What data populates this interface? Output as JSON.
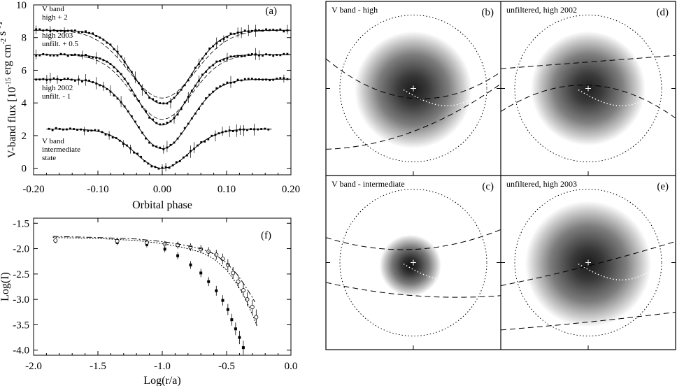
{
  "chart_data": [
    {
      "type": "line",
      "panel": "(a)",
      "xlabel": "Orbital phase",
      "ylabel": "V-band flux [10",
      "ylabel_sup1": "-15",
      "ylabel_mid": " erg cm",
      "ylabel_sup2": "-2",
      "ylabel_mid2": " s",
      "ylabel_sup3": "-1",
      "ylabel_end": "]",
      "xlim": [
        -0.2,
        0.2
      ],
      "ylim": [
        -0.4,
        10
      ],
      "xticks": [
        -0.2,
        -0.1,
        0.0,
        0.1,
        0.2
      ],
      "xtick_labels": [
        "-0.20",
        "-0.10",
        "0.00",
        "0.10",
        "0.20"
      ],
      "yticks": [
        0,
        2,
        4,
        6,
        8,
        10
      ],
      "ytick_labels": [
        "0",
        "2",
        "4",
        "6",
        "8",
        "10"
      ],
      "series": [
        {
          "key": "vhigh",
          "offset": 8.45,
          "depth": 4.5,
          "width": 0.045,
          "xmin": -0.2,
          "xmax": 0.2
        },
        {
          "key": "unf2003",
          "offset": 6.95,
          "depth": 4.3,
          "width": 0.04,
          "xmin": -0.2,
          "xmax": 0.2
        },
        {
          "key": "unf2002",
          "offset": 5.45,
          "depth": 4.25,
          "width": 0.043,
          "xmin": -0.2,
          "xmax": 0.2
        },
        {
          "key": "vint",
          "offset": 2.4,
          "depth": 2.4,
          "width": 0.042,
          "xmin": -0.18,
          "xmax": 0.17
        }
      ],
      "annotations": [
        {
          "lines": [
            "V band",
            "high + 2"
          ]
        },
        {
          "lines": [
            "high 2003",
            "unfilt. + 0.5"
          ]
        },
        {
          "lines": [
            "high 2002",
            "unfilt. - 1"
          ]
        },
        {
          "lines": [
            "V band",
            "intermediate",
            "state"
          ]
        }
      ]
    },
    {
      "type": "scatter",
      "panel": "(f)",
      "xlabel": "Log(r/a)",
      "ylabel": "Log(I)",
      "xlim": [
        -2.0,
        0.0
      ],
      "ylim": [
        -4.1,
        -1.4
      ],
      "xticks": [
        -2.0,
        -1.5,
        -1.0,
        -0.5,
        0.0
      ],
      "xtick_labels": [
        "-2.0",
        "-1.5",
        "-1.0",
        "-0.5",
        "0.0"
      ],
      "yticks": [
        -1.5,
        -2.0,
        -2.5,
        -3.0,
        -3.5,
        -4.0
      ],
      "ytick_labels": [
        "-1.5",
        "-2.0",
        "-2.5",
        "-3.0",
        "-3.5",
        "-4.0"
      ],
      "series": [
        {
          "key": "filled",
          "marker": "filled-square",
          "x": [
            -1.83,
            -1.35,
            -1.12,
            -0.98,
            -0.88,
            -0.78,
            -0.7,
            -0.64,
            -0.58,
            -0.53,
            -0.49,
            -0.46,
            -0.43,
            -0.4,
            -0.37
          ],
          "y": [
            -1.85,
            -1.88,
            -1.92,
            -2.01,
            -2.14,
            -2.32,
            -2.48,
            -2.65,
            -2.83,
            -3.02,
            -3.2,
            -3.4,
            -3.58,
            -3.75,
            -3.95
          ]
        },
        {
          "key": "open",
          "marker": "open-circle",
          "x": [
            -1.83,
            -1.35,
            -1.12,
            -0.98,
            -0.88,
            -0.78,
            -0.7,
            -0.64,
            -0.58,
            -0.53,
            -0.49,
            -0.45,
            -0.41,
            -0.37,
            -0.34,
            -0.3,
            -0.27
          ],
          "y": [
            -1.84,
            -1.85,
            -1.88,
            -1.91,
            -1.93,
            -1.97,
            -2.01,
            -2.06,
            -2.12,
            -2.2,
            -2.32,
            -2.48,
            -2.65,
            -2.82,
            -3.0,
            -3.15,
            -3.35
          ]
        },
        {
          "key": "dashdot",
          "style": "dashdot",
          "x": [
            -1.85,
            -1.5,
            -1.2,
            -1.0,
            -0.85,
            -0.7,
            -0.6,
            -0.5,
            -0.42,
            -0.36,
            -0.31,
            -0.28
          ],
          "y": [
            -1.76,
            -1.78,
            -1.81,
            -1.86,
            -1.92,
            -2.0,
            -2.1,
            -2.28,
            -2.5,
            -2.72,
            -2.92,
            -3.05
          ]
        },
        {
          "key": "dotted",
          "style": "dotted",
          "x": [
            -1.85,
            -1.5,
            -1.2,
            -1.0,
            -0.85,
            -0.7,
            -0.6,
            -0.5,
            -0.42,
            -0.35,
            -0.3,
            -0.26
          ],
          "y": [
            -1.78,
            -1.8,
            -1.84,
            -1.9,
            -1.97,
            -2.07,
            -2.2,
            -2.42,
            -2.7,
            -3.0,
            -3.3,
            -3.55
          ]
        }
      ]
    }
  ],
  "maps": [
    {
      "panel": "(b)",
      "title": "V band - high",
      "blob_r": 0.8,
      "blob_shift": [
        0,
        0.02
      ],
      "dense": 0.92,
      "d1": [
        -1.0,
        0.45,
        -0.15,
        1.4,
        0.25
      ],
      "d2": [
        -1.0,
        -0.92,
        -0.65,
        1.0,
        0.07
      ]
    },
    {
      "panel": "(d)",
      "title": "unfiltered, high 2002",
      "blob_r": 0.78,
      "blob_shift": [
        0,
        0
      ],
      "dense": 0.9,
      "d1": [
        -1.0,
        0.3,
        0.4,
        1.0,
        0.5
      ],
      "d2": [
        -1.0,
        -0.35,
        0.05,
        1.0,
        -0.45
      ]
    },
    {
      "panel": "(c)",
      "title": "V band - intermediate",
      "blob_r": 0.42,
      "blob_shift": [
        -0.04,
        0.04
      ],
      "dense": 0.95,
      "d1": [
        -1.0,
        0.38,
        0.2,
        1.0,
        0.5
      ],
      "d2": [
        -1.0,
        -0.3,
        -0.5,
        1.0,
        -0.5
      ]
    },
    {
      "panel": "(e)",
      "title": "unfiltered, high 2003",
      "blob_r": 0.86,
      "blob_shift": [
        0,
        0.02
      ],
      "dense": 0.92,
      "d1": [
        -1.0,
        -0.35,
        -0.05,
        1.0,
        0.32
      ],
      "d2": [
        -1.0,
        -1.02,
        -0.9,
        1.0,
        -0.75
      ]
    }
  ]
}
